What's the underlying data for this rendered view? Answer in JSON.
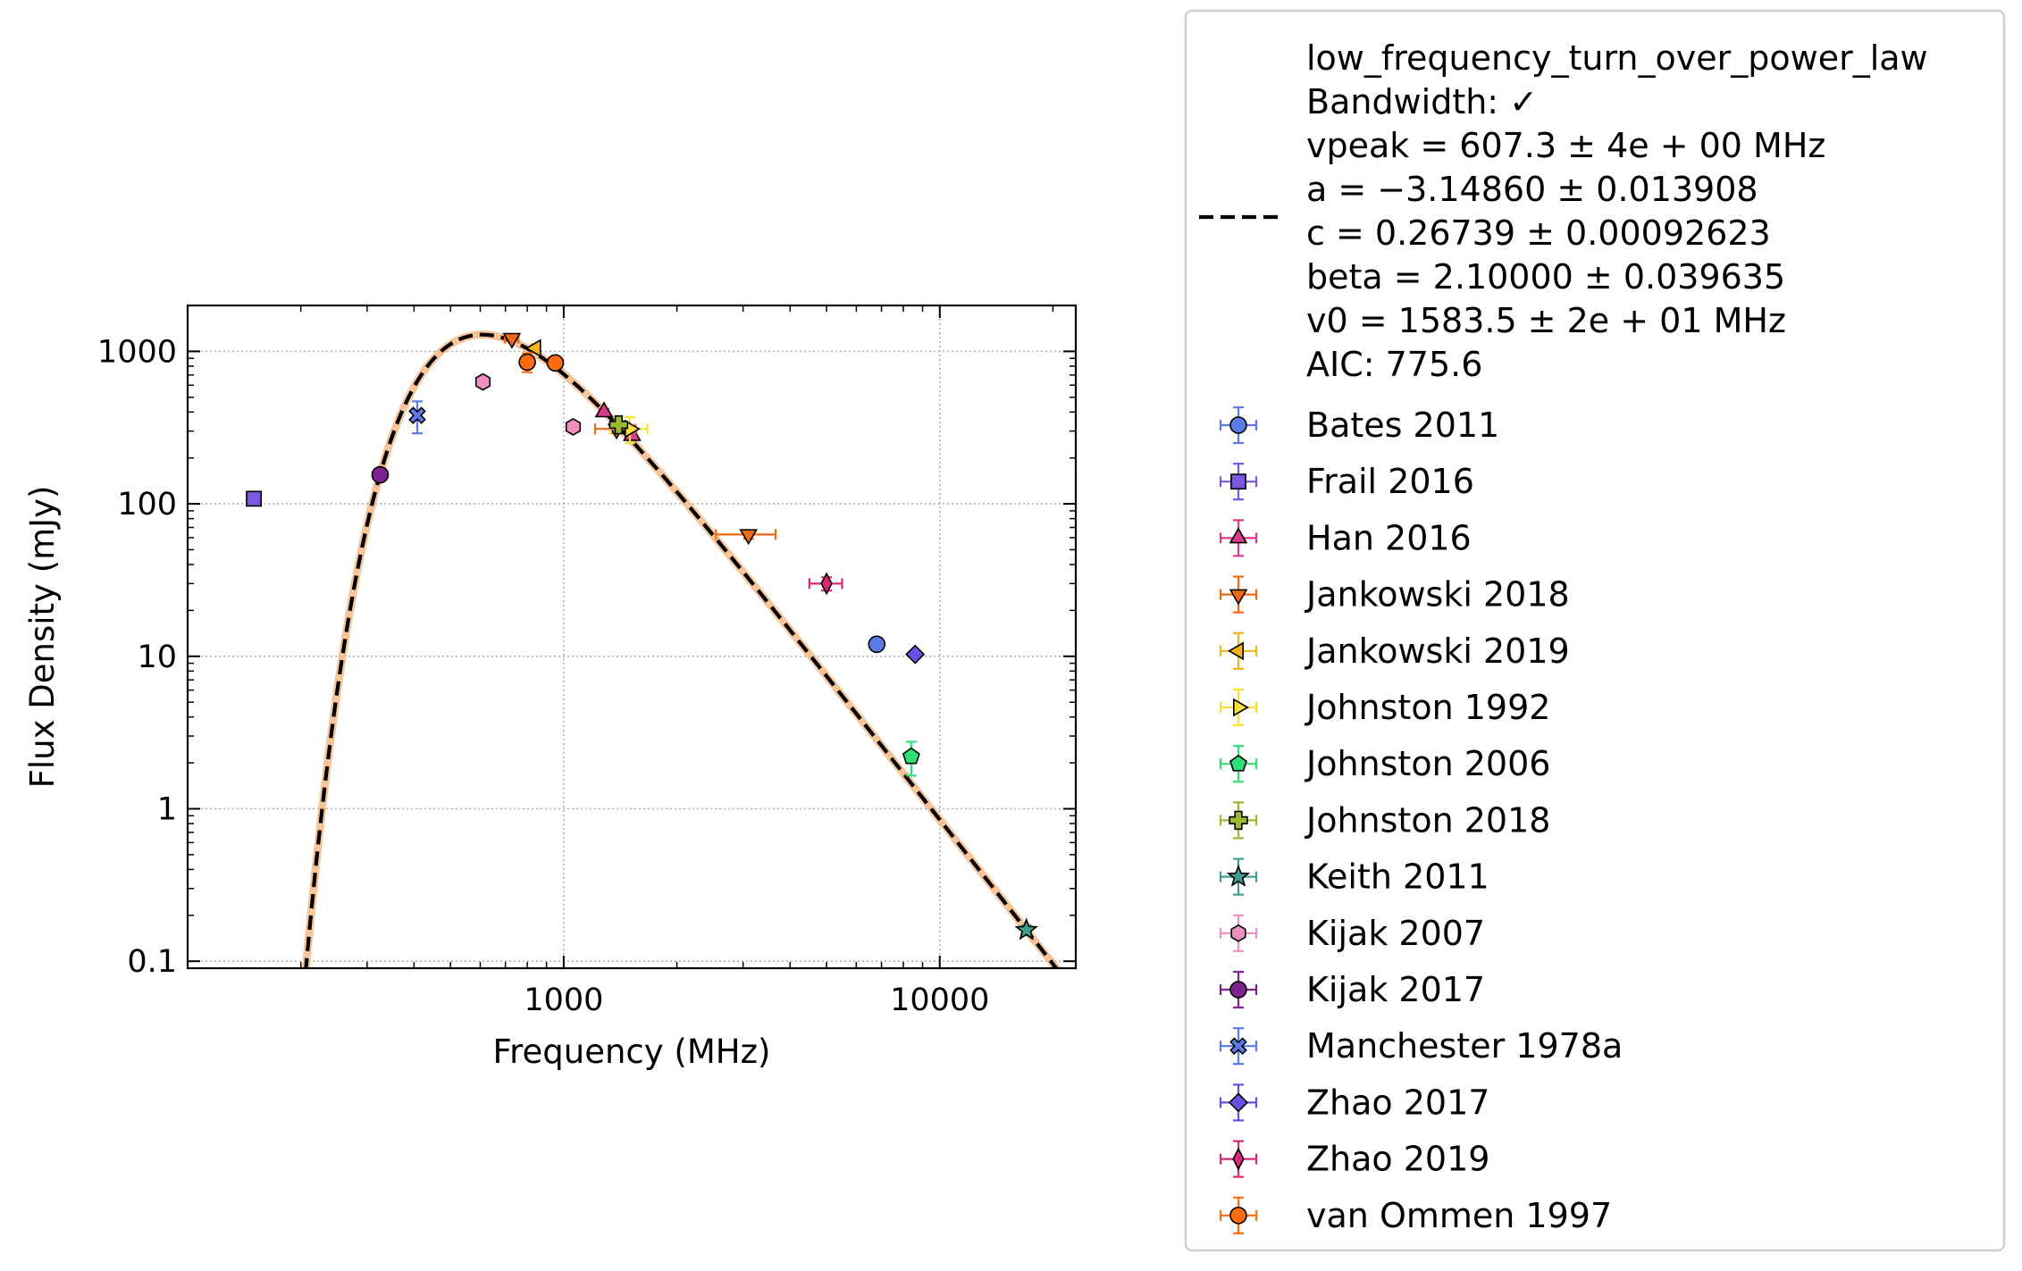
{
  "chart_data": {
    "type": "scatter",
    "xlabel": "Frequency (MHz)",
    "ylabel": "Flux Density (mJy)",
    "xscale": "log",
    "yscale": "log",
    "xlim": [
      100,
      23000
    ],
    "ylim": [
      0.09,
      2000
    ],
    "xticks": [
      {
        "value": 1000,
        "label": "1000"
      },
      {
        "value": 10000,
        "label": "10000"
      }
    ],
    "yticks": [
      {
        "value": 0.1,
        "label": "0.1"
      },
      {
        "value": 1,
        "label": "1"
      },
      {
        "value": 10,
        "label": "10"
      },
      {
        "value": 100,
        "label": "100"
      },
      {
        "value": 1000,
        "label": "1000"
      }
    ],
    "grid": true,
    "legend_position": "outside right",
    "fit": {
      "model_name": "low_frequency_turn_over_power_law",
      "params": {
        "vpeak": 607.3,
        "a": -3.1486,
        "c": 0.26739,
        "beta": 2.1,
        "v0": 1583.5
      },
      "legend_lines": [
        "low_frequency_turn_over_power_law",
        "Bandwidth: ✓",
        "vpeak = 607.3 ± 4e + 00 MHz",
        "a = −3.14860 ± 0.013908",
        "c = 0.26739 ± 0.00092623",
        "beta = 2.10000 ± 0.039635",
        "v0 = 1583.5 ± 2e + 01 MHz",
        "AIC: 775.6"
      ],
      "color": "#000000",
      "band_color": "#f5b27a"
    },
    "series": [
      {
        "name": "Bates 2011",
        "marker": "circle",
        "color": "#5b7be6",
        "points": [
          {
            "x": 6800,
            "y": 12,
            "yerr": 0.6
          }
        ]
      },
      {
        "name": "Frail 2016",
        "marker": "square",
        "color": "#7b57e0",
        "points": [
          {
            "x": 150,
            "y": 108,
            "yerr": 5
          }
        ]
      },
      {
        "name": "Han 2016",
        "marker": "triangle-up",
        "color": "#d83b8c",
        "points": [
          {
            "x": 1280,
            "y": 400,
            "yerr": 20
          },
          {
            "x": 1520,
            "y": 280,
            "yerr": 15
          }
        ]
      },
      {
        "name": "Jankowski 2018",
        "marker": "triangle-down",
        "color": "#ef6a12",
        "points": [
          {
            "x": 728,
            "y": 1220,
            "yerr": 50,
            "xerr": 30
          },
          {
            "x": 1382,
            "y": 310,
            "yerr": 20,
            "xerr": 170
          },
          {
            "x": 3100,
            "y": 63,
            "yerr": 4,
            "xerr": 560
          }
        ]
      },
      {
        "name": "Jankowski 2019",
        "marker": "triangle-left",
        "color": "#f5b31c",
        "points": [
          {
            "x": 843,
            "y": 1050,
            "yerr": 50,
            "xerr": 20
          }
        ]
      },
      {
        "name": "Johnston 1992",
        "marker": "triangle-right",
        "color": "#f8e23a",
        "points": [
          {
            "x": 1500,
            "y": 310,
            "yerr": 60,
            "xerr": 170
          }
        ]
      },
      {
        "name": "Johnston 2006",
        "marker": "pentagon",
        "color": "#2fe07a",
        "points": [
          {
            "x": 8400,
            "y": 2.2,
            "yerr": 0.55
          }
        ]
      },
      {
        "name": "Johnston 2018",
        "marker": "plus",
        "color": "#9cb832",
        "points": [
          {
            "x": 1400,
            "y": 330,
            "yerr": 20
          }
        ]
      },
      {
        "name": "Keith 2011",
        "marker": "star",
        "color": "#3f9e8f",
        "points": [
          {
            "x": 17000,
            "y": 0.16,
            "yerr": 0.012
          }
        ]
      },
      {
        "name": "Kijak 2007",
        "marker": "hexagon",
        "color": "#ee8fc0",
        "points": [
          {
            "x": 610,
            "y": 630,
            "yerr": 20
          },
          {
            "x": 1060,
            "y": 320,
            "yerr": 15
          }
        ]
      },
      {
        "name": "Kijak 2017",
        "marker": "circle",
        "color": "#7c2390",
        "points": [
          {
            "x": 325,
            "y": 155,
            "yerr": 10
          }
        ]
      },
      {
        "name": "Manchester 1978a",
        "marker": "x",
        "color": "#5b7be6",
        "points": [
          {
            "x": 408,
            "y": 380,
            "yerr": 90
          }
        ]
      },
      {
        "name": "Zhao 2017",
        "marker": "diamond",
        "color": "#6b4fe0",
        "points": [
          {
            "x": 8600,
            "y": 10.3,
            "yerr": 0.5
          }
        ]
      },
      {
        "name": "Zhao 2019",
        "marker": "thin-diamond",
        "color": "#d8297a",
        "points": [
          {
            "x": 5000,
            "y": 30,
            "yerr": 3,
            "xerr": 500
          }
        ]
      },
      {
        "name": "van Ommen 1997",
        "marker": "circle",
        "color": "#ff6b0f",
        "points": [
          {
            "x": 800,
            "y": 850,
            "yerr": 120
          },
          {
            "x": 950,
            "y": 840,
            "yerr": 60
          }
        ]
      }
    ]
  }
}
